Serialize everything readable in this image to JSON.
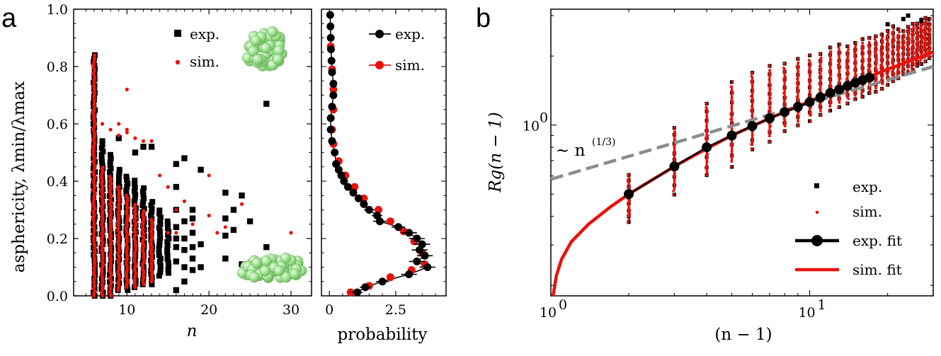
{
  "chart_data": [
    {
      "panel": "a",
      "type": "scatter",
      "xlabel": "n",
      "ylabel": "asphericity, λmin/λmax",
      "xlim": [
        3.5,
        32.5
      ],
      "ylim": [
        0.0,
        1.0
      ],
      "xticks": [
        "10",
        "20",
        "30"
      ],
      "yticks": [
        "0.0",
        "0.2",
        "0.4",
        "0.6",
        "0.8",
        "1.0"
      ],
      "legend": [
        "exp.",
        "sim."
      ],
      "colors": {
        "exp": "#000000",
        "sim": "#e8120c",
        "cluster": "#9de28e"
      },
      "series": [
        {
          "name": "exp.",
          "columns": [
            {
              "n": 6,
              "min": 0.0,
              "max": 0.84
            },
            {
              "n": 7,
              "min": 0.0,
              "max": 0.54
            },
            {
              "n": 8,
              "min": 0.0,
              "max": 0.5
            },
            {
              "n": 9,
              "min": 0.02,
              "max": 0.45
            },
            {
              "n": 10,
              "min": 0.02,
              "max": 0.42
            },
            {
              "n": 11,
              "min": 0.03,
              "max": 0.41
            },
            {
              "n": 12,
              "min": 0.04,
              "max": 0.38
            },
            {
              "n": 13,
              "min": 0.04,
              "max": 0.33
            },
            {
              "n": 14,
              "min": 0.07,
              "max": 0.3
            },
            {
              "n": 15,
              "min": 0.08,
              "max": 0.27
            }
          ],
          "points": [
            {
              "x": 9,
              "y": 0.55
            },
            {
              "x": 11,
              "y": 0.5
            },
            {
              "x": 12,
              "y": 0.52
            },
            {
              "x": 13,
              "y": 0.52
            },
            {
              "x": 16,
              "y": 0.46
            },
            {
              "x": 16,
              "y": 0.38
            },
            {
              "x": 16,
              "y": 0.3
            },
            {
              "x": 16,
              "y": 0.24
            },
            {
              "x": 16,
              "y": 0.2
            },
            {
              "x": 16,
              "y": 0.17
            },
            {
              "x": 16,
              "y": 0.12
            },
            {
              "x": 16,
              "y": 0.02
            },
            {
              "x": 17,
              "y": 0.48
            },
            {
              "x": 17,
              "y": 0.26
            },
            {
              "x": 17,
              "y": 0.2
            },
            {
              "x": 17,
              "y": 0.16
            },
            {
              "x": 17,
              "y": 0.1
            },
            {
              "x": 17,
              "y": 0.05
            },
            {
              "x": 18,
              "y": 0.3
            },
            {
              "x": 18,
              "y": 0.27
            },
            {
              "x": 18,
              "y": 0.22
            },
            {
              "x": 18,
              "y": 0.17
            },
            {
              "x": 18,
              "y": 0.13
            },
            {
              "x": 18,
              "y": 0.09
            },
            {
              "x": 19,
              "y": 0.44
            },
            {
              "x": 19,
              "y": 0.18
            },
            {
              "x": 19,
              "y": 0.1
            },
            {
              "x": 22,
              "y": 0.36
            },
            {
              "x": 22,
              "y": 0.27
            },
            {
              "x": 22,
              "y": 0.21
            },
            {
              "x": 22,
              "y": 0.13
            },
            {
              "x": 23,
              "y": 0.3
            },
            {
              "x": 23,
              "y": 0.23
            },
            {
              "x": 24,
              "y": 0.35
            },
            {
              "x": 24,
              "y": 0.11
            },
            {
              "x": 25,
              "y": 0.26
            },
            {
              "x": 27,
              "y": 0.67
            },
            {
              "x": 27,
              "y": 0.17
            }
          ]
        },
        {
          "name": "sim.",
          "columns": [
            {
              "n": 6,
              "min": 0.0,
              "max": 0.84
            },
            {
              "n": 7,
              "min": 0.0,
              "max": 0.45
            },
            {
              "n": 8,
              "min": 0.0,
              "max": 0.42
            },
            {
              "n": 9,
              "min": 0.02,
              "max": 0.38
            },
            {
              "n": 10,
              "min": 0.03,
              "max": 0.35
            },
            {
              "n": 11,
              "min": 0.03,
              "max": 0.32
            },
            {
              "n": 12,
              "min": 0.04,
              "max": 0.3
            },
            {
              "n": 13,
              "min": 0.05,
              "max": 0.27
            }
          ],
          "points": [
            {
              "x": 7,
              "y": 0.6
            },
            {
              "x": 8,
              "y": 0.58
            },
            {
              "x": 9,
              "y": 0.6
            },
            {
              "x": 9,
              "y": 0.56
            },
            {
              "x": 10,
              "y": 0.58
            },
            {
              "x": 10,
              "y": 0.57
            },
            {
              "x": 10,
              "y": 0.72
            },
            {
              "x": 11,
              "y": 0.55
            },
            {
              "x": 12,
              "y": 0.54
            },
            {
              "x": 13,
              "y": 0.54
            },
            {
              "x": 14,
              "y": 0.42
            },
            {
              "x": 15,
              "y": 0.38
            },
            {
              "x": 15,
              "y": 0.22
            },
            {
              "x": 16,
              "y": 0.3
            },
            {
              "x": 16,
              "y": 0.22
            },
            {
              "x": 17,
              "y": 0.33
            },
            {
              "x": 18,
              "y": 0.25
            },
            {
              "x": 20,
              "y": 0.42
            },
            {
              "x": 20,
              "y": 0.28
            },
            {
              "x": 21,
              "y": 0.22
            },
            {
              "x": 22,
              "y": 0.24
            },
            {
              "x": 24,
              "y": 0.32
            },
            {
              "x": 30,
              "y": 0.22
            }
          ]
        }
      ]
    },
    {
      "panel": "a-right",
      "type": "line",
      "xlabel": "probability",
      "xlim": [
        -0.3,
        4.4
      ],
      "ylim": [
        0.0,
        1.0
      ],
      "xticks": [
        "0",
        "2.5"
      ],
      "legend": [
        "exp.",
        "sim."
      ],
      "series": [
        {
          "name": "exp.",
          "points": [
            {
              "p": 1.05,
              "y": 0.012,
              "err": 0.2
            },
            {
              "p": 1.35,
              "y": 0.03,
              "err": 0.2
            },
            {
              "p": 2.0,
              "y": 0.05,
              "err": 0.25
            },
            {
              "p": 3.0,
              "y": 0.075,
              "err": 0.3
            },
            {
              "p": 3.7,
              "y": 0.1,
              "err": 0.3
            },
            {
              "p": 3.3,
              "y": 0.12,
              "err": 0.3
            },
            {
              "p": 3.6,
              "y": 0.14,
              "err": 0.3
            },
            {
              "p": 3.4,
              "y": 0.16,
              "err": 0.3
            },
            {
              "p": 3.5,
              "y": 0.18,
              "err": 0.3
            },
            {
              "p": 3.3,
              "y": 0.2,
              "err": 0.3
            },
            {
              "p": 3.0,
              "y": 0.22,
              "err": 0.3
            },
            {
              "p": 2.6,
              "y": 0.24,
              "err": 0.25
            },
            {
              "p": 1.9,
              "y": 0.26,
              "err": 0.25
            },
            {
              "p": 1.8,
              "y": 0.28,
              "err": 0.2
            },
            {
              "p": 1.5,
              "y": 0.3,
              "err": 0.2
            },
            {
              "p": 1.3,
              "y": 0.32,
              "err": 0.15
            },
            {
              "p": 1.1,
              "y": 0.34,
              "err": 0.15
            },
            {
              "p": 0.9,
              "y": 0.36,
              "err": 0.1
            },
            {
              "p": 0.7,
              "y": 0.38,
              "err": 0.1
            },
            {
              "p": 0.55,
              "y": 0.4,
              "err": 0.1
            },
            {
              "p": 0.45,
              "y": 0.42,
              "err": 0.08
            },
            {
              "p": 0.35,
              "y": 0.44,
              "err": 0.08
            },
            {
              "p": 0.25,
              "y": 0.46,
              "err": 0.06
            },
            {
              "p": 0.2,
              "y": 0.5,
              "err": 0.05
            },
            {
              "p": 0.1,
              "y": 0.54,
              "err": 0.04
            },
            {
              "p": 0.05,
              "y": 0.58,
              "err": 0.03
            },
            {
              "p": 0.05,
              "y": 0.62,
              "err": 0.02
            },
            {
              "p": 0.1,
              "y": 0.66,
              "err": 0.02
            },
            {
              "p": 0.15,
              "y": 0.7,
              "err": 0.02
            },
            {
              "p": 0.15,
              "y": 0.74,
              "err": 0.02
            },
            {
              "p": 0.1,
              "y": 0.78,
              "err": 0.02
            },
            {
              "p": 0.08,
              "y": 0.82,
              "err": 0.02
            },
            {
              "p": 0.06,
              "y": 0.86,
              "err": 0.02
            },
            {
              "p": 0.05,
              "y": 0.9,
              "err": 0.02
            },
            {
              "p": 0.04,
              "y": 0.94,
              "err": 0.02
            },
            {
              "p": 0.03,
              "y": 0.98,
              "err": 0.02
            }
          ]
        },
        {
          "name": "sim.",
          "points": [
            {
              "p": 0.8,
              "y": 0.012
            },
            {
              "p": 1.5,
              "y": 0.035
            },
            {
              "p": 2.3,
              "y": 0.065
            },
            {
              "p": 3.1,
              "y": 0.09
            },
            {
              "p": 3.6,
              "y": 0.11
            },
            {
              "p": 3.5,
              "y": 0.15
            },
            {
              "p": 3.2,
              "y": 0.19
            },
            {
              "p": 2.8,
              "y": 0.225
            },
            {
              "p": 2.3,
              "y": 0.26
            },
            {
              "p": 1.85,
              "y": 0.3
            },
            {
              "p": 1.3,
              "y": 0.34
            },
            {
              "p": 0.95,
              "y": 0.38
            },
            {
              "p": 0.6,
              "y": 0.42
            },
            {
              "p": 0.35,
              "y": 0.47
            },
            {
              "p": 0.15,
              "y": 0.53
            },
            {
              "p": 0.1,
              "y": 0.58
            },
            {
              "p": 0.15,
              "y": 0.65
            },
            {
              "p": 0.15,
              "y": 0.72
            },
            {
              "p": 0.1,
              "y": 0.79
            },
            {
              "p": 0.05,
              "y": 0.87
            }
          ]
        }
      ]
    },
    {
      "panel": "b",
      "type": "scatter",
      "xlabel": "(n − 1)",
      "ylabel": "Rg(n − 1)",
      "xscale": "log",
      "yscale": "log",
      "xlim": [
        1.0,
        30.0
      ],
      "ylim": [
        0.18,
        3.2
      ],
      "xticks": [
        "10",
        "10"
      ],
      "xtick_exponents": [
        "0",
        "1"
      ],
      "yticks": [
        "10"
      ],
      "ytick_exponents": [
        "0"
      ],
      "annotation": "∼ n",
      "annotation_exponent": "(1/3)",
      "legend": [
        "exp.",
        "sim.",
        "exp. fit",
        "sim. fit"
      ],
      "colors": {
        "guide": "#8c8c8c",
        "exp": "#000000",
        "sim": "#e8120c"
      },
      "fit_points": [
        {
          "x": 2,
          "y": 0.5
        },
        {
          "x": 3,
          "y": 0.66
        },
        {
          "x": 4,
          "y": 0.8
        },
        {
          "x": 5,
          "y": 0.9
        },
        {
          "x": 6,
          "y": 0.99
        },
        {
          "x": 7,
          "y": 1.07
        },
        {
          "x": 8,
          "y": 1.14
        },
        {
          "x": 9,
          "y": 1.2
        },
        {
          "x": 10,
          "y": 1.26
        },
        {
          "x": 11,
          "y": 1.32
        },
        {
          "x": 12,
          "y": 1.38
        },
        {
          "x": 13,
          "y": 1.43
        },
        {
          "x": 14,
          "y": 1.48
        },
        {
          "x": 15,
          "y": 1.53
        },
        {
          "x": 16,
          "y": 1.57
        },
        {
          "x": 17,
          "y": 1.61
        }
      ],
      "spreads": [
        {
          "x": 2,
          "min": 0.38,
          "max": 0.6
        },
        {
          "x": 3,
          "min": 0.5,
          "max": 0.98
        },
        {
          "x": 4,
          "min": 0.6,
          "max": 1.25
        },
        {
          "x": 5,
          "min": 0.66,
          "max": 1.55
        },
        {
          "x": 6,
          "min": 0.78,
          "max": 1.7
        },
        {
          "x": 7,
          "min": 0.85,
          "max": 1.82
        },
        {
          "x": 8,
          "min": 0.95,
          "max": 1.85
        },
        {
          "x": 9,
          "min": 1.0,
          "max": 1.95
        },
        {
          "x": 10,
          "min": 1.05,
          "max": 2.0
        },
        {
          "x": 11,
          "min": 1.1,
          "max": 2.05
        },
        {
          "x": 12,
          "min": 1.15,
          "max": 2.2
        },
        {
          "x": 13,
          "min": 1.2,
          "max": 2.25
        },
        {
          "x": 14,
          "min": 1.25,
          "max": 2.2
        },
        {
          "x": 15,
          "min": 1.3,
          "max": 2.3
        },
        {
          "x": 16,
          "min": 1.33,
          "max": 2.35
        },
        {
          "x": 17,
          "min": 1.37,
          "max": 2.4
        },
        {
          "x": 18,
          "min": 1.4,
          "max": 2.45
        },
        {
          "x": 19,
          "min": 1.45,
          "max": 2.5
        },
        {
          "x": 20,
          "min": 1.5,
          "max": 2.6
        },
        {
          "x": 21,
          "min": 1.55,
          "max": 2.7
        },
        {
          "x": 22,
          "min": 1.6,
          "max": 2.6
        },
        {
          "x": 23,
          "min": 1.65,
          "max": 2.55
        },
        {
          "x": 24,
          "min": 1.7,
          "max": 2.7
        },
        {
          "x": 25,
          "min": 1.75,
          "max": 2.75
        },
        {
          "x": 26,
          "min": 1.8,
          "max": 2.8
        },
        {
          "x": 27,
          "min": 1.85,
          "max": 2.9
        },
        {
          "x": 28,
          "min": 1.9,
          "max": 2.95
        },
        {
          "x": 29,
          "min": 1.95,
          "max": 2.9
        }
      ],
      "outliers": [
        {
          "x": 24,
          "y": 3.0
        },
        {
          "x": 20,
          "y": 2.75
        },
        {
          "x": 23,
          "y": 2.9
        },
        {
          "x": 27,
          "y": 2.85
        }
      ],
      "sim_fit": [
        {
          "x": 1.02,
          "y": 0.18
        },
        {
          "x": 1.05,
          "y": 0.22
        },
        {
          "x": 1.1,
          "y": 0.26
        },
        {
          "x": 1.2,
          "y": 0.31
        },
        {
          "x": 1.4,
          "y": 0.37
        },
        {
          "x": 1.7,
          "y": 0.44
        },
        {
          "x": 2.0,
          "y": 0.5
        },
        {
          "x": 3.0,
          "y": 0.66
        },
        {
          "x": 4.0,
          "y": 0.79
        },
        {
          "x": 5.0,
          "y": 0.9
        },
        {
          "x": 7.0,
          "y": 1.07
        },
        {
          "x": 10.0,
          "y": 1.27
        },
        {
          "x": 14.0,
          "y": 1.49
        },
        {
          "x": 20.0,
          "y": 1.75
        },
        {
          "x": 30.0,
          "y": 2.08
        }
      ],
      "guide_line": {
        "x0": 1.0,
        "y0": 0.58,
        "x1": 30.0,
        "y1": 1.8
      }
    }
  ],
  "panel_labels": {
    "a": "a",
    "b": "b"
  }
}
